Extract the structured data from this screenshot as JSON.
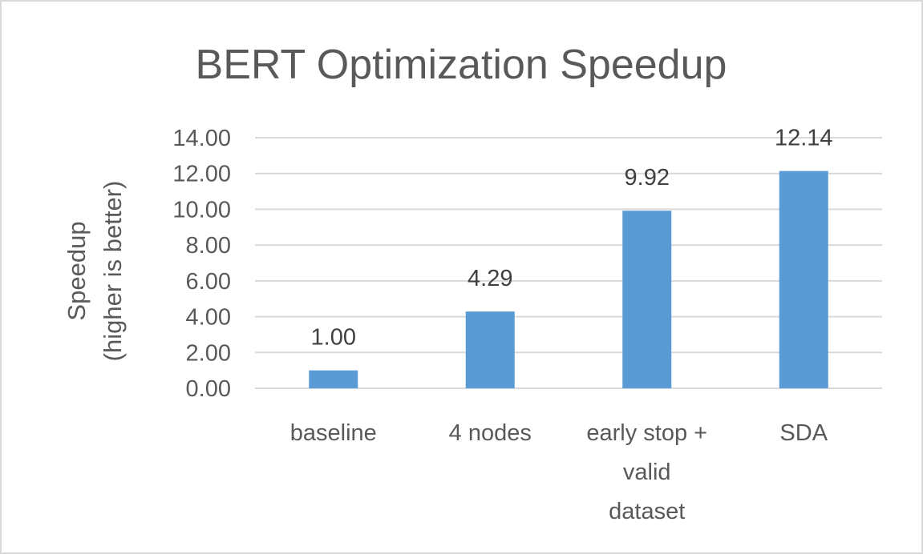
{
  "chart_data": {
    "type": "bar",
    "title": "BERT Optimization Speedup",
    "ylabel_lines": [
      "Speedup",
      "(higher is better)"
    ],
    "xlabel": "",
    "categories": [
      [
        "baseline"
      ],
      [
        "4 nodes"
      ],
      [
        "early stop +",
        "valid",
        "dataset"
      ],
      [
        "SDA"
      ]
    ],
    "values": [
      1.0,
      4.29,
      9.92,
      12.14
    ],
    "data_labels": [
      "1.00",
      "4.29",
      "9.92",
      "12.14"
    ],
    "yticks": [
      "0.00",
      "2.00",
      "4.00",
      "6.00",
      "8.00",
      "10.00",
      "12.00",
      "14.00"
    ],
    "ylim": [
      0,
      14
    ],
    "grid": true,
    "legend": "none",
    "bar_color": "#5b9bd5"
  }
}
